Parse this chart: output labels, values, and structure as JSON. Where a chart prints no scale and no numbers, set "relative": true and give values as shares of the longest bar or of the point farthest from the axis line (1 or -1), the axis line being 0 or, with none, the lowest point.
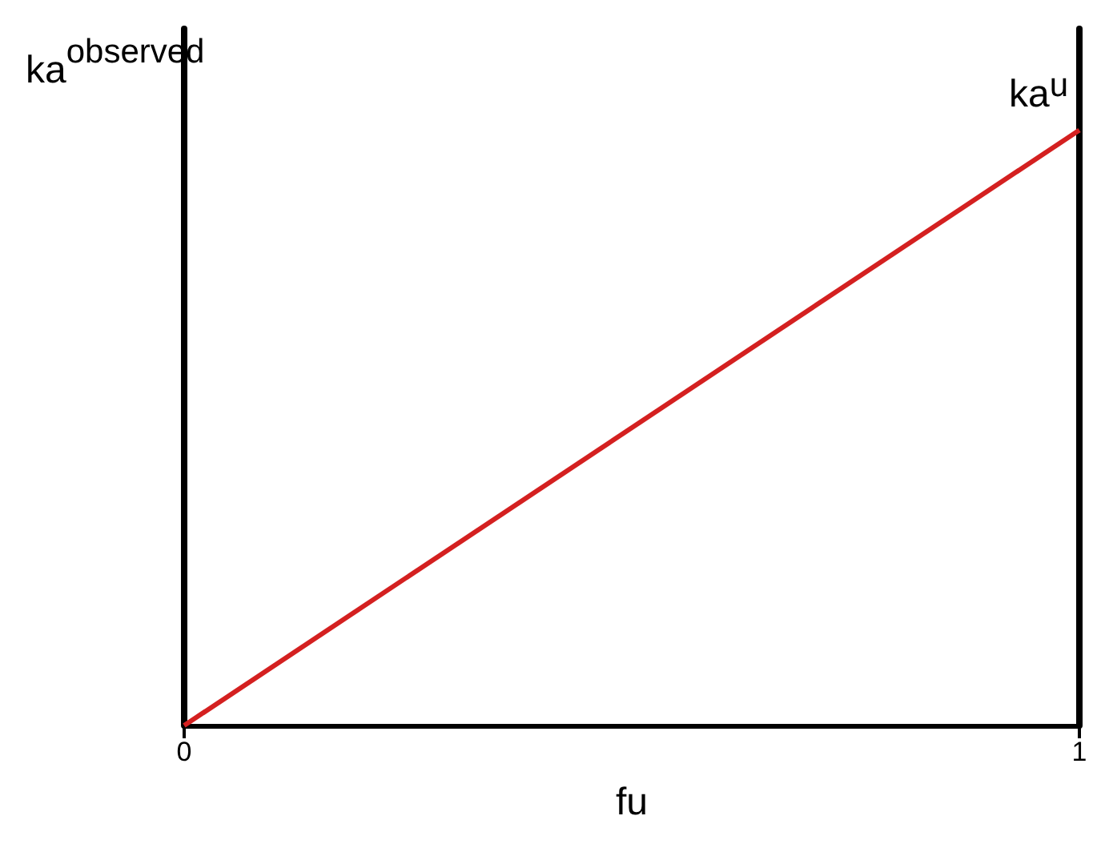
{
  "chart_data": {
    "type": "line",
    "relative": true,
    "xlabel": "fu",
    "ylabel": "ka$^{observed}$",
    "x": [
      0,
      1
    ],
    "xlim": [
      0,
      1
    ],
    "xticks": [
      0,
      1
    ],
    "series": [
      {
        "color": "#d42020",
        "values": [
          0,
          1
        ]
      }
    ],
    "annotations": [
      {
        "text": "ka$^{u}$",
        "x": 1,
        "y": 1
      }
    ],
    "grid": false,
    "marker": "none",
    "line_style": "solid"
  }
}
